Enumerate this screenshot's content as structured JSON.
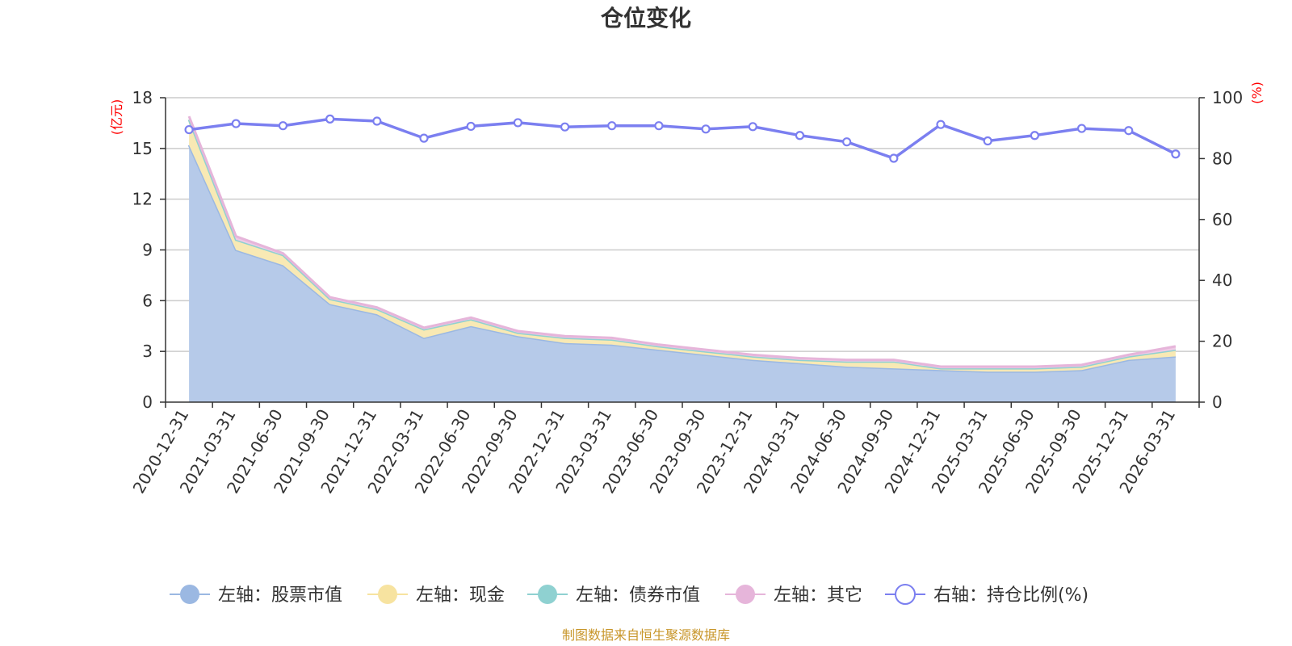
{
  "chart_data": {
    "type": "area",
    "title": "仓位变化",
    "left_unit": "(亿元)",
    "right_unit": "(%)",
    "source": "制图数据来自恒生聚源数据库",
    "categories": [
      "2020-12-31",
      "2021-03-31",
      "2021-06-30",
      "2021-09-30",
      "2021-12-31",
      "2022-03-31",
      "2022-06-30",
      "2022-09-30",
      "2022-12-31",
      "2023-03-31",
      "2023-06-30",
      "2023-09-30",
      "2023-12-31",
      "2024-03-31",
      "2024-06-30",
      "2024-09-30",
      "2024-12-31",
      "2025-03-31",
      "2025-06-30",
      "2025-09-30",
      "2025-12-31",
      "2026-03-31"
    ],
    "y_left": {
      "min": 0,
      "max": 18,
      "ticks": [
        "0",
        "3",
        "6",
        "9",
        "12",
        "15",
        "18"
      ]
    },
    "y_right": {
      "min": 0,
      "max": 100,
      "ticks": [
        "0",
        "20",
        "40",
        "60",
        "80",
        "100"
      ]
    },
    "grid": true,
    "legend_position": "bottom",
    "series": [
      {
        "name": "左轴：股票市值",
        "axis": "left",
        "kind": "stacked-area",
        "color": "#9bb8e2",
        "fill": "#b6cae9",
        "values": [
          15.2,
          9.0,
          8.1,
          5.8,
          5.2,
          3.8,
          4.5,
          3.9,
          3.5,
          3.4,
          3.1,
          2.8,
          2.5,
          2.3,
          2.1,
          2.0,
          1.9,
          1.8,
          1.8,
          1.9,
          2.5,
          2.7
        ]
      },
      {
        "name": "左轴：现金",
        "axis": "left",
        "kind": "stacked-area",
        "color": "#f7e3a0",
        "fill": "#f8e9b4",
        "values": [
          1.5,
          0.6,
          0.6,
          0.3,
          0.3,
          0.5,
          0.4,
          0.2,
          0.3,
          0.3,
          0.2,
          0.2,
          0.2,
          0.2,
          0.3,
          0.4,
          0.1,
          0.2,
          0.2,
          0.2,
          0.2,
          0.4
        ]
      },
      {
        "name": "左轴：债券市值",
        "axis": "left",
        "kind": "stacked-area",
        "color": "#8fd1d1",
        "fill": "#a8dcdc",
        "values": [
          0,
          0,
          0,
          0,
          0,
          0,
          0,
          0,
          0,
          0,
          0,
          0,
          0,
          0,
          0,
          0,
          0,
          0,
          0,
          0,
          0,
          0
        ]
      },
      {
        "name": "左轴：其它",
        "axis": "left",
        "kind": "stacked-area",
        "color": "#e6b5da",
        "fill": "#efcbe6",
        "values": [
          0.2,
          0.2,
          0.1,
          0.1,
          0.1,
          0.1,
          0.1,
          0.1,
          0.1,
          0.1,
          0.1,
          0.1,
          0.1,
          0.1,
          0.1,
          0.1,
          0.1,
          0.1,
          0.1,
          0.1,
          0.1,
          0.2
        ]
      },
      {
        "name": "右轴：持仓比例(%)",
        "axis": "right",
        "kind": "line",
        "color": "#7b7ff0",
        "values": [
          89.5,
          91.5,
          90.8,
          93.0,
          92.3,
          86.7,
          90.6,
          91.8,
          90.4,
          90.8,
          90.8,
          89.7,
          90.5,
          87.6,
          85.5,
          80.1,
          91.2,
          85.8,
          87.6,
          89.9,
          89.2,
          81.5
        ]
      }
    ]
  }
}
